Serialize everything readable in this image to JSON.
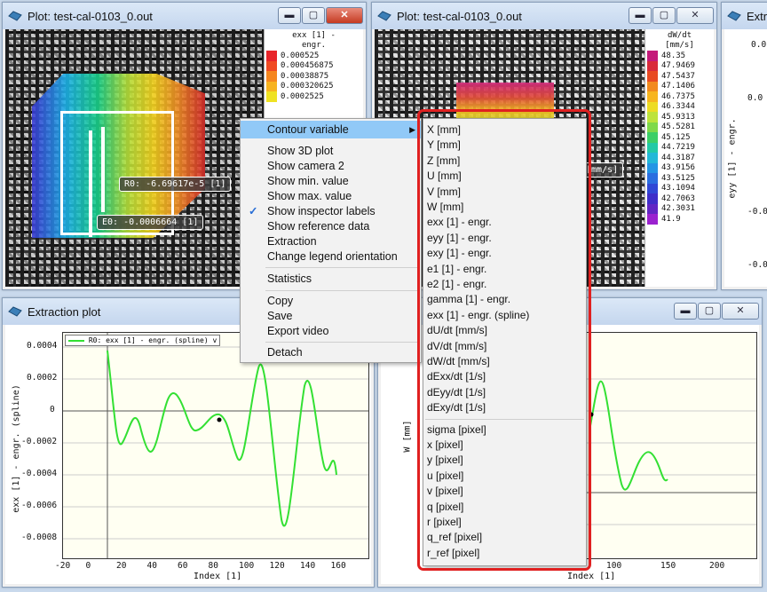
{
  "window1": {
    "title": "Plot: test-cal-0103_0.out",
    "legend_title_line1": "exx [1] -",
    "legend_title_line2": "engr.",
    "legend_entries": [
      {
        "label": "0.000525",
        "color": "#e8252a"
      },
      {
        "label": "0.000456875",
        "color": "#f04a22"
      },
      {
        "label": "0.00038875",
        "color": "#f5861f"
      },
      {
        "label": "0.000320625",
        "color": "#f7b320"
      },
      {
        "label": "0.0002525",
        "color": "#efe223"
      }
    ],
    "inspector_label_1": "R0: -6.69617e-5 [1]",
    "inspector_label_2": "E0: -0.0006664 [1]"
  },
  "window2": {
    "title": "Plot: test-cal-0103_0.out",
    "legend_title_line1": "dW/dt",
    "legend_title_line2": "[mm/s]",
    "legend_entries": [
      {
        "label": "48.35",
        "color": "#c41a7a"
      },
      {
        "label": "47.9469",
        "color": "#d92a3a"
      },
      {
        "label": "47.5437",
        "color": "#e84a22"
      },
      {
        "label": "47.1406",
        "color": "#f28a1e"
      },
      {
        "label": "46.7375",
        "color": "#f7b51f"
      },
      {
        "label": "46.3344",
        "color": "#eddc24"
      },
      {
        "label": "45.9313",
        "color": "#bde33c"
      },
      {
        "label": "45.5281",
        "color": "#7fd94a"
      },
      {
        "label": "45.125",
        "color": "#3ccf67"
      },
      {
        "label": "44.7219",
        "color": "#22c9a6"
      },
      {
        "label": "44.3187",
        "color": "#22b8d8"
      },
      {
        "label": "43.9156",
        "color": "#2395e5"
      },
      {
        "label": "43.5125",
        "color": "#2a6ee0"
      },
      {
        "label": "43.1094",
        "color": "#3048d6"
      },
      {
        "label": "42.7063",
        "color": "#3f2ec9"
      },
      {
        "label": "42.3031",
        "color": "#6226c4"
      },
      {
        "label": "41.9",
        "color": "#9b22cf"
      }
    ],
    "inspector_label": "[mm/s]"
  },
  "window3": {
    "title": "Extr",
    "ticks": [
      "0.0",
      "0.0",
      "-0.0",
      "-0.0"
    ],
    "ylabel": "eyy [1] - engr."
  },
  "extraction_plot": {
    "title": "Extraction plot",
    "legend": "R0: exx [1] - engr. (spline) v",
    "ylabel": "exx [1] - engr. (spline)",
    "xlabel": "Index [1]",
    "y_ticks": [
      "0.0004",
      "0.0002",
      "0",
      "-0.0002",
      "-0.0004",
      "-0.0006",
      "-0.0008"
    ],
    "x_ticks": [
      "-20",
      "0",
      "20",
      "40",
      "60",
      "80",
      "100",
      "120",
      "140",
      "160"
    ]
  },
  "plot4": {
    "ylabel": "W [mm]",
    "xlabel": "Index [1]",
    "x_ticks": [
      "100",
      "150",
      "200"
    ]
  },
  "context_menu": {
    "items": [
      {
        "label": "Contour variable",
        "submenu": true,
        "highlighted": true
      },
      {
        "label": "Show 3D plot"
      },
      {
        "label": "Show camera 2"
      },
      {
        "label": "Show min. value"
      },
      {
        "label": "Show max. value"
      },
      {
        "label": "Show inspector labels",
        "checked": true
      },
      {
        "label": "Show reference data"
      },
      {
        "label": "Extraction"
      },
      {
        "label": "Change legend orientation"
      },
      {
        "label": "Statistics"
      },
      {
        "label": "Copy"
      },
      {
        "label": "Save"
      },
      {
        "label": "Export video"
      },
      {
        "label": "Detach"
      }
    ]
  },
  "contour_submenu": {
    "items": [
      "X [mm]",
      "Y [mm]",
      "Z [mm]",
      "U [mm]",
      "V [mm]",
      "W [mm]",
      "exx [1] - engr.",
      "eyy [1] - engr.",
      "exy [1] - engr.",
      "e1 [1] - engr.",
      "e2 [1] - engr.",
      "gamma [1] - engr.",
      "exx [1] - engr. (spline)",
      "dU/dt [mm/s]",
      "dV/dt [mm/s]",
      "dW/dt [mm/s]",
      "dExx/dt [1/s]",
      "dEyy/dt [1/s]",
      "dExy/dt [1/s]",
      "sigma [pixel]",
      "x [pixel]",
      "y [pixel]",
      "u [pixel]",
      "v [pixel]",
      "q [pixel]",
      "r [pixel]",
      "q_ref [pixel]",
      "r_ref [pixel]"
    ]
  },
  "colors": {
    "highlight": "#91c9f7",
    "callout": "#e02020",
    "curve": "#33e033"
  }
}
